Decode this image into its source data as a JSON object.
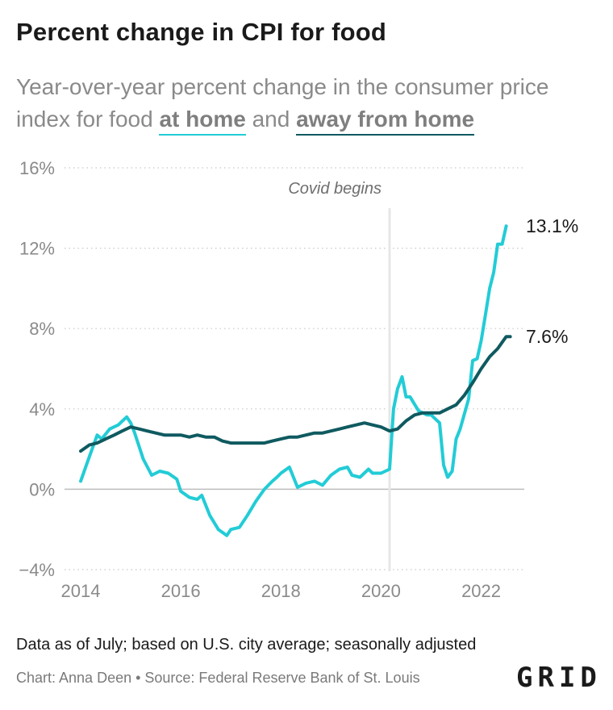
{
  "header": {
    "title": "Percent change in CPI for food",
    "subtitle_pre": "Year-over-year percent change in the consumer price index for food ",
    "subtitle_home": "at home",
    "subtitle_mid": " and ",
    "subtitle_away": "away from home"
  },
  "footer": {
    "note": "Data as of July; based on U.S. city average; seasonally adjusted",
    "source": "Chart: Anna Deen • Source: Federal Reserve Bank of St. Louis",
    "logo": "GRID"
  },
  "colors": {
    "at_home": "#22ccd6",
    "away_from_home": "#0f5a60",
    "grid": "#c8c8c8",
    "annotation_line": "#e6e6e6",
    "tick_label": "#8a8a8a"
  },
  "chart_data": {
    "type": "line",
    "title": "Percent change in CPI for food",
    "xlabel": "",
    "ylabel": "",
    "xlim": [
      2014,
      2022.7
    ],
    "ylim": [
      -4,
      16
    ],
    "x_ticks": [
      2014,
      2016,
      2018,
      2020,
      2022
    ],
    "x_tick_labels": [
      "2014",
      "2016",
      "2018",
      "2020",
      "2022"
    ],
    "y_ticks": [
      -4,
      0,
      4,
      8,
      12,
      16
    ],
    "y_tick_labels": [
      "−4%",
      "0%",
      "4%",
      "8%",
      "12%",
      "16%"
    ],
    "grid": "horizontal dotted",
    "legend": "inline in subtitle",
    "annotations": [
      {
        "x": 2020.17,
        "label": "Covid begins"
      }
    ],
    "end_labels": [
      {
        "series": "at_home",
        "value": 13.1,
        "label": "13.1%"
      },
      {
        "series": "away_from_home",
        "value": 7.6,
        "label": "7.6%"
      }
    ],
    "series": [
      {
        "name": "at home",
        "key": "at_home",
        "x": [
          2014.0,
          2014.17,
          2014.33,
          2014.42,
          2014.58,
          2014.75,
          2014.92,
          2015.0,
          2015.08,
          2015.25,
          2015.42,
          2015.58,
          2015.75,
          2015.92,
          2016.0,
          2016.17,
          2016.33,
          2016.42,
          2016.58,
          2016.75,
          2016.92,
          2017.0,
          2017.17,
          2017.33,
          2017.5,
          2017.67,
          2017.83,
          2017.92,
          2018.0,
          2018.17,
          2018.33,
          2018.5,
          2018.67,
          2018.83,
          2019.0,
          2019.17,
          2019.33,
          2019.42,
          2019.58,
          2019.75,
          2019.83,
          2020.0,
          2020.17,
          2020.25,
          2020.33,
          2020.42,
          2020.5,
          2020.58,
          2020.75,
          2020.92,
          2021.0,
          2021.17,
          2021.25,
          2021.33,
          2021.42,
          2021.5,
          2021.58,
          2021.75,
          2021.83,
          2021.92,
          2022.0,
          2022.08,
          2022.17,
          2022.25,
          2022.33,
          2022.42,
          2022.5
        ],
        "values": [
          0.4,
          1.6,
          2.7,
          2.5,
          3.0,
          3.2,
          3.6,
          3.3,
          2.8,
          1.5,
          0.7,
          0.9,
          0.8,
          0.5,
          -0.1,
          -0.4,
          -0.5,
          -0.3,
          -1.3,
          -2.0,
          -2.3,
          -2.0,
          -1.9,
          -1.3,
          -0.6,
          0.0,
          0.4,
          0.6,
          0.8,
          1.1,
          0.1,
          0.3,
          0.4,
          0.2,
          0.7,
          1.0,
          1.1,
          0.7,
          0.6,
          1.0,
          0.8,
          0.8,
          1.0,
          4.0,
          5.0,
          5.6,
          4.6,
          4.6,
          3.9,
          3.7,
          3.7,
          3.3,
          1.2,
          0.6,
          0.9,
          2.5,
          3.0,
          4.5,
          6.4,
          6.5,
          7.4,
          8.6,
          10.0,
          10.8,
          12.2,
          12.2,
          13.1
        ]
      },
      {
        "name": "away from home",
        "key": "away_from_home",
        "x": [
          2014.0,
          2014.17,
          2014.33,
          2014.5,
          2014.67,
          2014.83,
          2015.0,
          2015.17,
          2015.33,
          2015.5,
          2015.67,
          2015.83,
          2016.0,
          2016.17,
          2016.33,
          2016.5,
          2016.67,
          2016.83,
          2017.0,
          2017.17,
          2017.33,
          2017.5,
          2017.67,
          2017.83,
          2018.0,
          2018.17,
          2018.33,
          2018.5,
          2018.67,
          2018.83,
          2019.0,
          2019.17,
          2019.33,
          2019.5,
          2019.67,
          2019.83,
          2020.0,
          2020.17,
          2020.33,
          2020.5,
          2020.67,
          2020.83,
          2021.0,
          2021.17,
          2021.33,
          2021.5,
          2021.67,
          2021.83,
          2022.0,
          2022.17,
          2022.33,
          2022.5,
          2022.58
        ],
        "values": [
          1.9,
          2.2,
          2.3,
          2.5,
          2.7,
          2.9,
          3.1,
          3.0,
          2.9,
          2.8,
          2.7,
          2.7,
          2.7,
          2.6,
          2.7,
          2.6,
          2.6,
          2.4,
          2.3,
          2.3,
          2.3,
          2.3,
          2.3,
          2.4,
          2.5,
          2.6,
          2.6,
          2.7,
          2.8,
          2.8,
          2.9,
          3.0,
          3.1,
          3.2,
          3.3,
          3.2,
          3.1,
          2.9,
          3.0,
          3.4,
          3.7,
          3.8,
          3.8,
          3.8,
          4.0,
          4.2,
          4.7,
          5.3,
          6.0,
          6.6,
          7.0,
          7.6,
          7.6
        ]
      }
    ]
  }
}
